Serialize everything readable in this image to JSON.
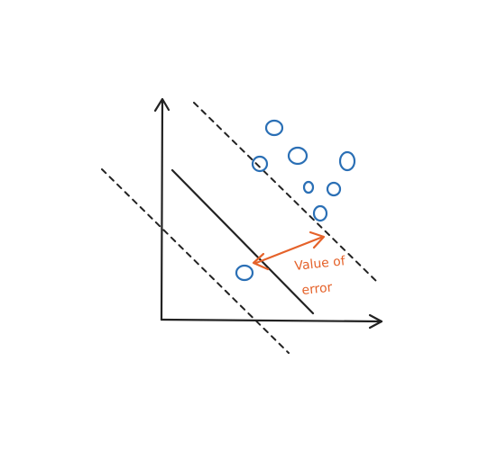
{
  "annotation": {
    "line1": "Value of",
    "line2": "error"
  },
  "colors": {
    "ink": "#222222",
    "points": "#2a6fb5",
    "annotation": "#e5622a",
    "background": "#ffffff"
  }
}
